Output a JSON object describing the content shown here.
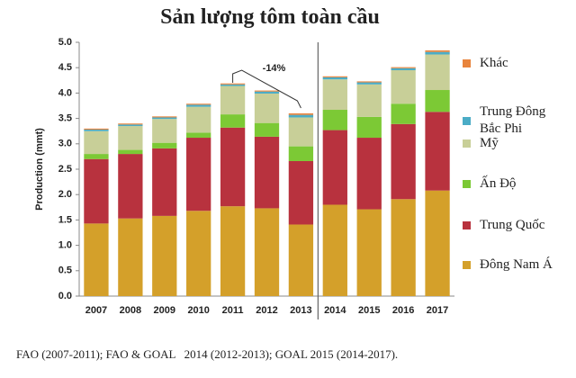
{
  "chart_data": {
    "type": "stacked_bar",
    "title": "Sản lượng tôm toàn cầu",
    "y_label": "Production (mmt)",
    "annotation": "-14%",
    "source": "FAO (2007-2011); FAO & GOAL   2014 (2012-2013); GOAL 2015 (2014-2017).",
    "categories": [
      "2007",
      "2008",
      "2009",
      "2010",
      "2011",
      "2012",
      "2013",
      "2014",
      "2015",
      "2016",
      "2017"
    ],
    "series": [
      {
        "name": "Đông Nam Á",
        "color": "#d4a02a",
        "values": [
          1.43,
          1.53,
          1.58,
          1.68,
          1.77,
          1.73,
          1.41,
          1.8,
          1.71,
          1.91,
          2.08
        ]
      },
      {
        "name": "Trung Quốc",
        "color": "#b8323e",
        "values": [
          1.27,
          1.27,
          1.33,
          1.44,
          1.55,
          1.41,
          1.25,
          1.47,
          1.41,
          1.48,
          1.55
        ]
      },
      {
        "name": "Ấn Độ",
        "color": "#7cc935",
        "values": [
          0.1,
          0.08,
          0.11,
          0.1,
          0.26,
          0.27,
          0.29,
          0.4,
          0.41,
          0.4,
          0.43
        ]
      },
      {
        "name": "Mỹ",
        "color": "#c8cf98",
        "values": [
          0.45,
          0.47,
          0.47,
          0.51,
          0.56,
          0.58,
          0.57,
          0.6,
          0.64,
          0.66,
          0.7
        ]
      },
      {
        "name": "Trung Đông Bắc Phi",
        "color": "#4bacc6",
        "values": [
          0.03,
          0.03,
          0.03,
          0.04,
          0.03,
          0.04,
          0.05,
          0.04,
          0.04,
          0.04,
          0.05
        ]
      },
      {
        "name": "Khác",
        "color": "#e8843c",
        "values": [
          0.02,
          0.02,
          0.02,
          0.02,
          0.02,
          0.02,
          0.03,
          0.02,
          0.02,
          0.02,
          0.03
        ]
      }
    ],
    "ylim": [
      0,
      5
    ],
    "yticks": [
      {
        "value": 0,
        "label": "0.0"
      },
      {
        "value": 0.5,
        "label": "0.5"
      },
      {
        "value": 1,
        "label": "1.0"
      },
      {
        "value": 1.5,
        "label": "1.5"
      },
      {
        "value": 2,
        "label": "2.0"
      },
      {
        "value": 2.5,
        "label": "2.5"
      },
      {
        "value": 3,
        "label": "3.0"
      },
      {
        "value": 3.5,
        "label": "3.5"
      },
      {
        "value": 4,
        "label": "4.0"
      },
      {
        "value": 4.5,
        "label": "4.5"
      },
      {
        "value": 5,
        "label": "5.0"
      }
    ],
    "grid": false
  }
}
